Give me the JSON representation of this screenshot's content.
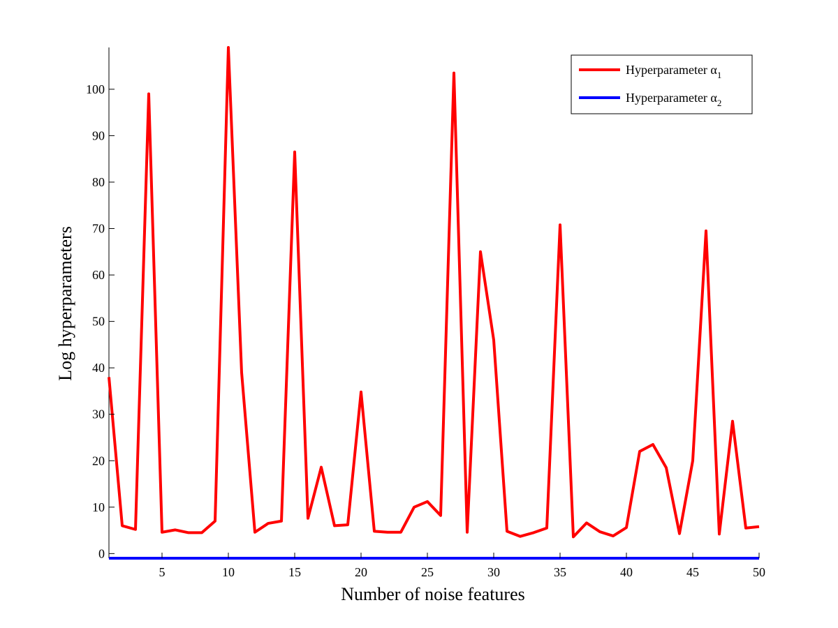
{
  "chart_data": {
    "type": "line",
    "title": "",
    "xlabel": "Number of noise features",
    "ylabel": "Log hyperparameters",
    "xlim": [
      1,
      50
    ],
    "ylim": [
      -1,
      109
    ],
    "xticks": [
      5,
      10,
      15,
      20,
      25,
      30,
      35,
      40,
      45,
      50
    ],
    "yticks": [
      0,
      10,
      20,
      30,
      40,
      50,
      60,
      70,
      80,
      90,
      100
    ],
    "grid": false,
    "legend_position": "top-right",
    "x": [
      1,
      2,
      3,
      4,
      5,
      6,
      7,
      8,
      9,
      10,
      11,
      12,
      13,
      14,
      15,
      16,
      17,
      18,
      19,
      20,
      21,
      22,
      23,
      24,
      25,
      26,
      27,
      28,
      29,
      30,
      31,
      32,
      33,
      34,
      35,
      36,
      37,
      38,
      39,
      40,
      41,
      42,
      43,
      44,
      45,
      46,
      47,
      48,
      49,
      50
    ],
    "series": [
      {
        "name": "Hyperparameter α",
        "subscript": "1",
        "color": "#ff0000",
        "values": [
          38,
          6,
          5.2,
          99,
          4.6,
          5.1,
          4.5,
          4.5,
          7,
          109,
          39,
          4.6,
          6.5,
          7,
          86.5,
          7.6,
          18.6,
          6,
          6.2,
          34.8,
          4.8,
          4.6,
          4.6,
          10,
          11.2,
          8.2,
          103.5,
          4.6,
          65,
          46,
          4.8,
          3.7,
          4.5,
          5.5,
          70.8,
          3.6,
          6.6,
          4.7,
          3.8,
          5.6,
          22,
          23.5,
          18.5,
          4.3,
          20,
          69.5,
          4.2,
          28.5,
          5.5,
          5.8
        ]
      },
      {
        "name": "Hyperparameter α",
        "subscript": "2",
        "color": "#0000ff",
        "values": [
          -1,
          -1,
          -1,
          -1,
          -1,
          -1,
          -1,
          -1,
          -1,
          -1,
          -1,
          -1,
          -1,
          -1,
          -1,
          -1,
          -1,
          -1,
          -1,
          -1,
          -1,
          -1,
          -1,
          -1,
          -1,
          -1,
          -1,
          -1,
          -1,
          -1,
          -1,
          -1,
          -1,
          -1,
          -1,
          -1,
          -1,
          -1,
          -1,
          -1,
          -1,
          -1,
          -1,
          -1,
          -1,
          -1,
          -1,
          -1,
          -1,
          -1
        ]
      }
    ]
  }
}
